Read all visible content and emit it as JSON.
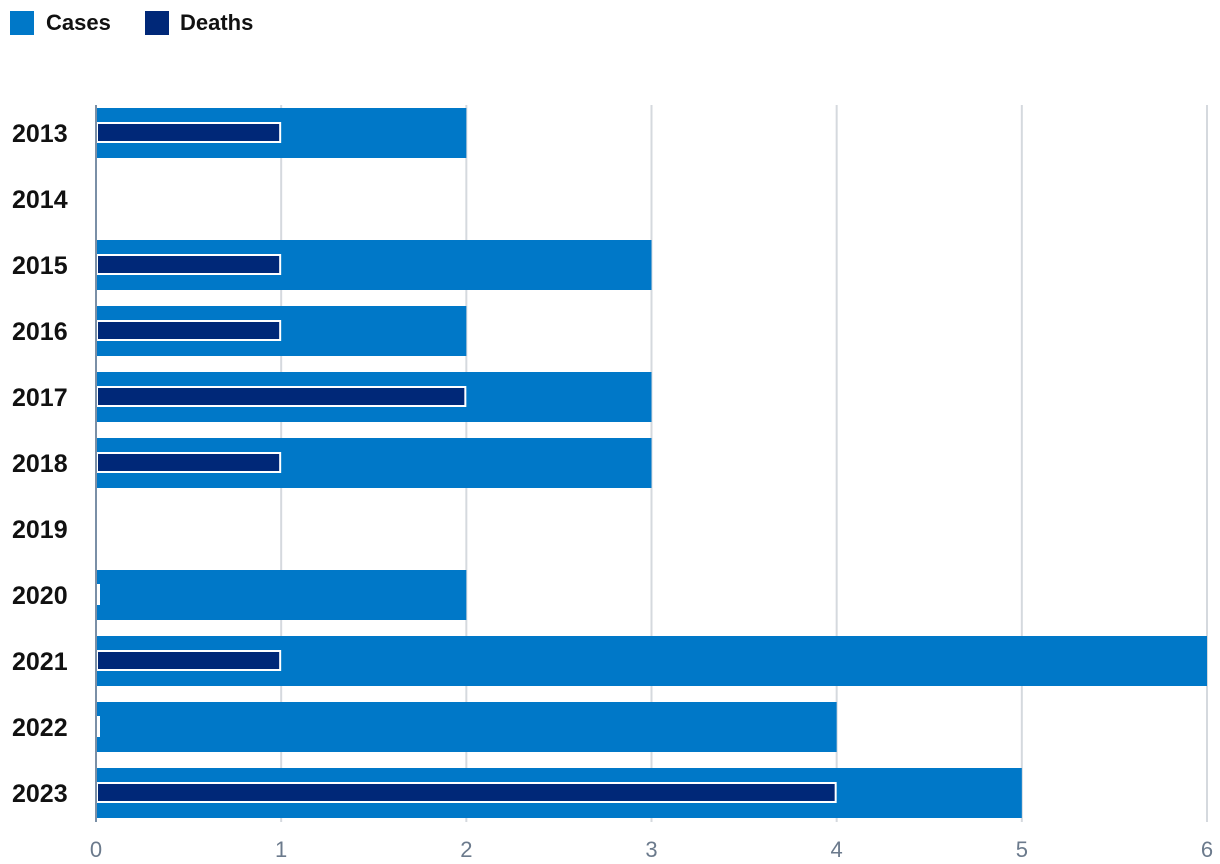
{
  "chart_data": {
    "type": "bar",
    "orientation": "horizontal",
    "categories": [
      "2013",
      "2014",
      "2015",
      "2016",
      "2017",
      "2018",
      "2019",
      "2020",
      "2021",
      "2022",
      "2023"
    ],
    "series": [
      {
        "name": "Cases",
        "color": "#0078c8",
        "values": [
          2,
          0,
          3,
          2,
          3,
          3,
          0,
          2,
          6,
          4,
          5
        ]
      },
      {
        "name": "Deaths",
        "color": "#002878",
        "values": [
          1,
          0,
          1,
          1,
          2,
          1,
          0,
          0,
          1,
          0,
          4
        ]
      }
    ],
    "xlim": [
      0,
      6
    ],
    "xticks": [
      "0",
      "1",
      "2",
      "3",
      "4",
      "5",
      "6"
    ],
    "grid": true,
    "legend": "top-left"
  }
}
